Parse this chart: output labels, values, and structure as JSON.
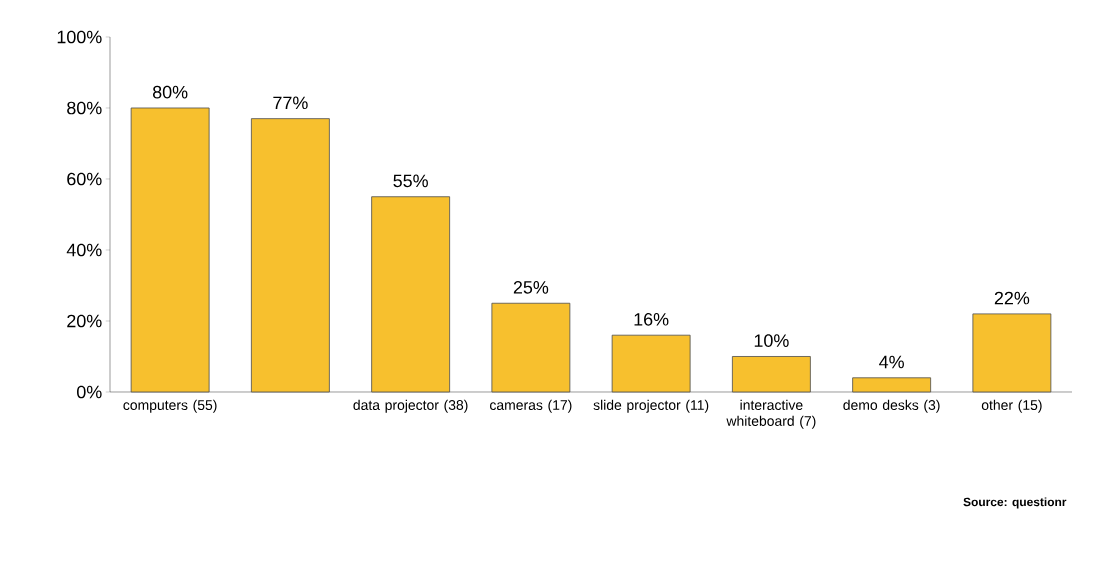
{
  "chart_data": {
    "type": "bar",
    "categories": [
      "computers (55)",
      null,
      "data projector (38)",
      "cameras (17)",
      "slide projector (11)",
      "interactive whiteboard (7)",
      "demo desks (3)",
      "other (15)"
    ],
    "values": [
      80,
      77,
      55,
      25,
      16,
      10,
      4,
      22
    ],
    "value_labels": [
      "80%",
      "77%",
      "55%",
      "25%",
      "16%",
      "10%",
      "4%",
      "22%"
    ],
    "color": "#f7c02e",
    "ylim": [
      0,
      100
    ],
    "yticks": [
      {
        "value": 0,
        "label": "0%"
      },
      {
        "value": 20,
        "label": "20%"
      },
      {
        "value": 40,
        "label": "40%"
      },
      {
        "value": 60,
        "label": "60%"
      },
      {
        "value": 80,
        "label": "80%"
      },
      {
        "value": 100,
        "label": "100%"
      }
    ],
    "grid": false,
    "annotations": [
      "Source: questionr"
    ]
  }
}
